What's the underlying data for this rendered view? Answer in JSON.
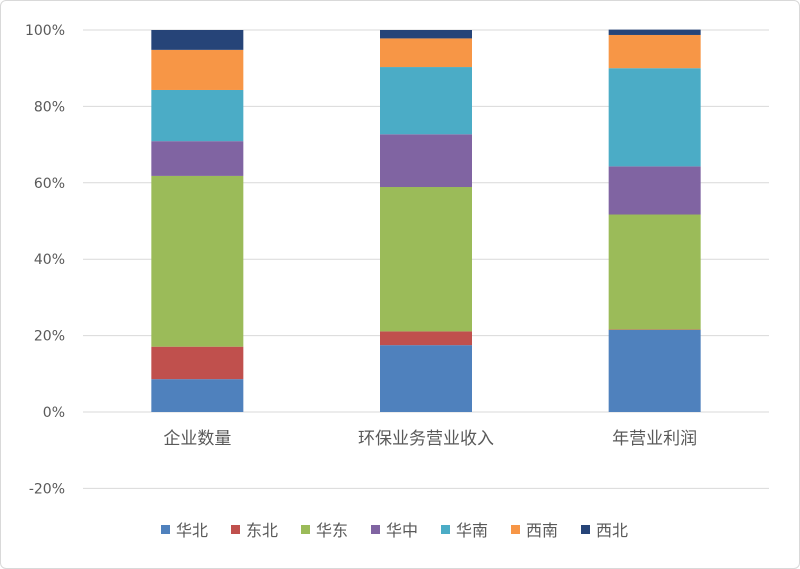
{
  "chart_data": {
    "type": "bar",
    "stacked": "percent",
    "title": "",
    "xlabel": "",
    "ylabel": "",
    "ylim": [
      -20,
      100
    ],
    "yticks": [
      "-20%",
      "0%",
      "20%",
      "40%",
      "60%",
      "80%",
      "100%"
    ],
    "grid": true,
    "legend_position": "bottom",
    "categories": [
      "企业数量",
      "环保业务营业收入",
      "年营业利润"
    ],
    "series": [
      {
        "name": "华北",
        "color": "#4f81bd",
        "values": [
          8.6,
          17.5,
          21.5
        ]
      },
      {
        "name": "东北",
        "color": "#c0504d",
        "values": [
          8.5,
          3.6,
          0.1
        ]
      },
      {
        "name": "华东",
        "color": "#9bbb59",
        "values": [
          44.7,
          37.8,
          30.1
        ]
      },
      {
        "name": "华中",
        "color": "#8064a2",
        "values": [
          9.1,
          13.8,
          12.6
        ]
      },
      {
        "name": "华南",
        "color": "#4bacc6",
        "values": [
          13.4,
          17.6,
          25.7
        ]
      },
      {
        "name": "西南",
        "color": "#f79646",
        "values": [
          10.5,
          7.5,
          8.7
        ]
      },
      {
        "name": "西北",
        "color": "#264478",
        "values": [
          5.2,
          2.2,
          1.4
        ]
      }
    ]
  }
}
